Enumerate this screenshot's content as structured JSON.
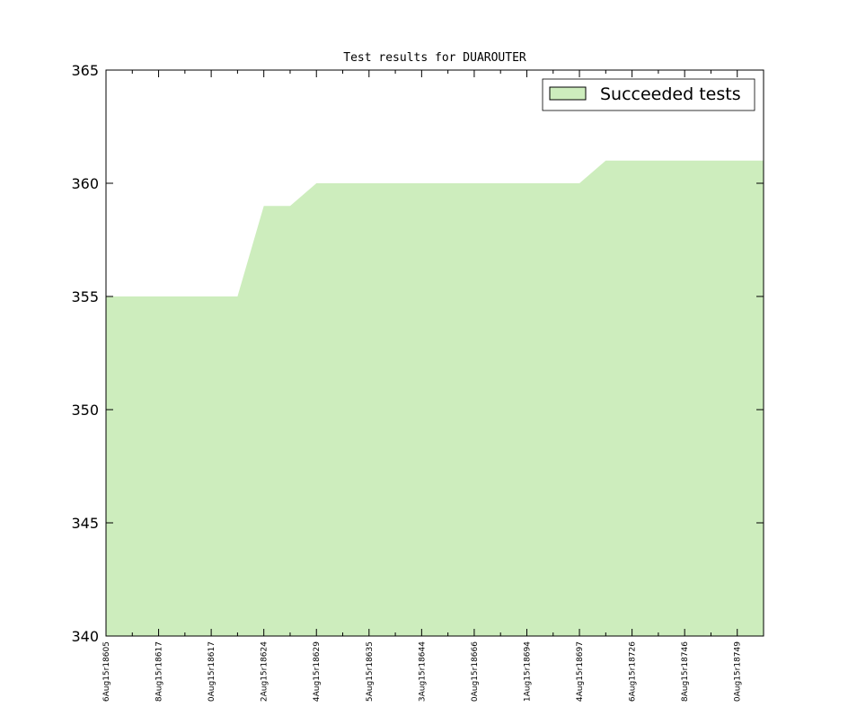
{
  "chart_data": {
    "type": "area",
    "title": "Test results for DUAROUTER",
    "categories": [
      "6Aug15r18605",
      null,
      "8Aug15r18617",
      null,
      "0Aug15r18617",
      null,
      "2Aug15r18624",
      null,
      "4Aug15r18629",
      null,
      "5Aug15r18635",
      null,
      "3Aug15r18644",
      null,
      "0Aug15r18666",
      null,
      "1Aug15r18694",
      null,
      "4Aug15r18697",
      null,
      "6Aug15r18726",
      null,
      "8Aug15r18746",
      null,
      "0Aug15r18749",
      null
    ],
    "series": [
      {
        "name": "Succeeded tests",
        "color": "#cdedbd",
        "values": [
          355,
          355,
          355,
          355,
          355,
          355,
          359,
          359,
          360,
          360,
          360,
          360,
          360,
          360,
          360,
          360,
          360,
          360,
          360,
          361,
          361,
          361,
          361,
          361,
          361,
          361
        ]
      }
    ],
    "ylim": [
      340,
      365
    ],
    "yticks": [
      340,
      345,
      350,
      355,
      360,
      365
    ],
    "legend": "upper right"
  }
}
